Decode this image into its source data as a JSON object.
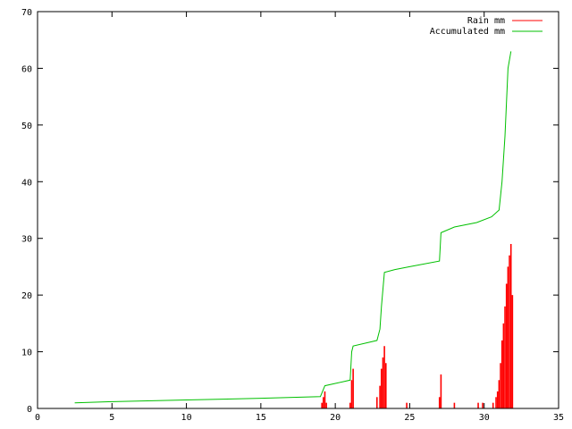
{
  "chart_data": {
    "type": "line",
    "title": "",
    "xlabel": "",
    "ylabel": "",
    "xlim": [
      0,
      35
    ],
    "ylim": [
      0,
      70
    ],
    "x_ticks": [
      0,
      5,
      10,
      15,
      20,
      25,
      30,
      35
    ],
    "y_ticks": [
      0,
      10,
      20,
      30,
      40,
      50,
      60,
      70
    ],
    "grid": false,
    "legend_position": "top-right",
    "series": [
      {
        "name": "Rain mm",
        "style": "impulses",
        "color": "#ff0000",
        "points": [
          [
            19.1,
            1
          ],
          [
            19.2,
            2
          ],
          [
            19.3,
            3
          ],
          [
            19.4,
            1
          ],
          [
            21.0,
            1
          ],
          [
            21.1,
            5
          ],
          [
            21.2,
            7
          ],
          [
            22.8,
            2
          ],
          [
            23.0,
            4
          ],
          [
            23.1,
            7
          ],
          [
            23.2,
            9
          ],
          [
            23.3,
            11
          ],
          [
            23.4,
            8
          ],
          [
            24.8,
            1
          ],
          [
            27.0,
            2
          ],
          [
            27.1,
            6
          ],
          [
            28.0,
            1
          ],
          [
            29.6,
            1
          ],
          [
            29.9,
            1
          ],
          [
            30.6,
            1
          ],
          [
            30.8,
            2
          ],
          [
            30.9,
            3
          ],
          [
            31.0,
            5
          ],
          [
            31.1,
            8
          ],
          [
            31.2,
            12
          ],
          [
            31.3,
            15
          ],
          [
            31.4,
            18
          ],
          [
            31.5,
            22
          ],
          [
            31.6,
            25
          ],
          [
            31.7,
            27
          ],
          [
            31.8,
            29
          ],
          [
            31.9,
            20
          ]
        ]
      },
      {
        "name": "Accumulated mm",
        "style": "line",
        "color": "#00c000",
        "points": [
          [
            2.5,
            1
          ],
          [
            5,
            1.2
          ],
          [
            10,
            1.5
          ],
          [
            15,
            1.8
          ],
          [
            19,
            2.1
          ],
          [
            19.3,
            4
          ],
          [
            21.0,
            5
          ],
          [
            21.1,
            10
          ],
          [
            21.2,
            11
          ],
          [
            22.8,
            12
          ],
          [
            23.0,
            14
          ],
          [
            23.1,
            18
          ],
          [
            23.3,
            24
          ],
          [
            24,
            24.5
          ],
          [
            25,
            25
          ],
          [
            27.0,
            26
          ],
          [
            27.1,
            31
          ],
          [
            28,
            32
          ],
          [
            29.5,
            32.8
          ],
          [
            30.5,
            33.8
          ],
          [
            31.0,
            35
          ],
          [
            31.2,
            40
          ],
          [
            31.4,
            48
          ],
          [
            31.6,
            60
          ],
          [
            31.8,
            63
          ]
        ]
      }
    ]
  }
}
